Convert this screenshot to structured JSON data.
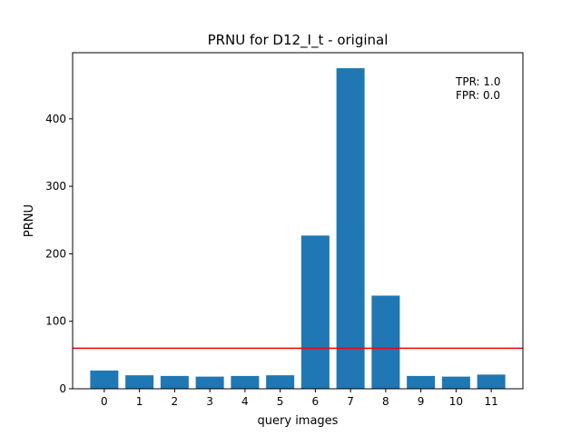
{
  "chart_data": {
    "type": "bar",
    "title": "PRNU for D12_I_t - original",
    "xlabel": "query images",
    "ylabel": "PRNU",
    "categories": [
      "0",
      "1",
      "2",
      "3",
      "4",
      "5",
      "6",
      "7",
      "8",
      "9",
      "10",
      "11"
    ],
    "values": [
      27,
      20,
      19,
      18,
      19,
      20,
      227,
      475,
      138,
      19,
      18,
      21
    ],
    "ylim": [
      0,
      498
    ],
    "yticks": [
      0,
      100,
      200,
      300,
      400
    ],
    "threshold": 60,
    "annotations": [
      "TPR: 1.0",
      "FPR: 0.0"
    ],
    "colors": {
      "bar": "#1f77b4",
      "threshold": "#ff0000"
    },
    "grid": false,
    "legend": "none"
  }
}
